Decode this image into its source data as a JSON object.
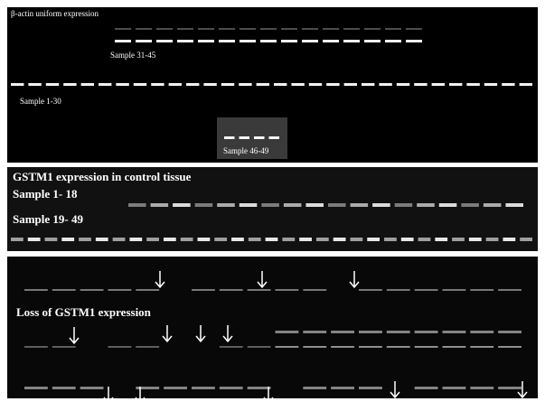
{
  "panels": [
    {
      "title": "β-actin uniform expression",
      "labels": [
        "Sample 31-45",
        "Sample 1-30",
        "Sample 46-49"
      ]
    },
    {
      "title": "GSTM1 expression in control tissue",
      "labels": [
        "Sample 1- 18",
        "Sample 19- 49"
      ]
    },
    {
      "title": "Loss of GSTM1 expression"
    }
  ]
}
